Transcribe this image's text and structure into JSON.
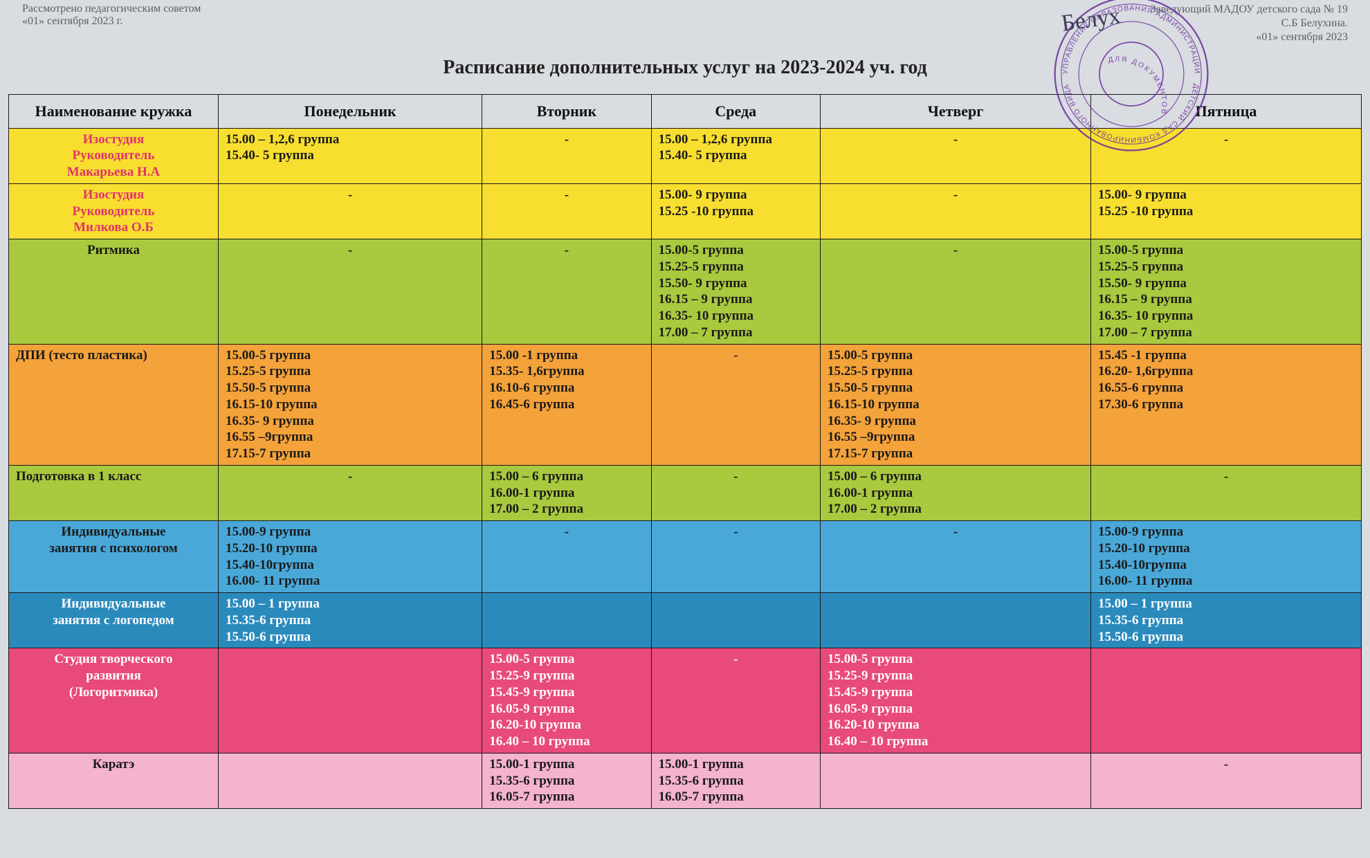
{
  "header": {
    "left_line1": "Рассмотрено педагогическим советом",
    "left_line2": "«01» сентября 2023  г.",
    "right_line1": "Заведующий МАДОУ детского сада № 19",
    "right_line2": "С.Б Белухина.",
    "right_line3": "«01» сентября 2023",
    "title": "Расписание дополнительных услуг на 2023-2024 уч. год",
    "signature_scribble": "Белух"
  },
  "stamp": {
    "color": "#6a2e9e",
    "outer_text_top": "УПРАВЛЕНИЕ ОБРАЗОВАНИЯ АДМИНИСТРАЦИИ",
    "outer_text_bottom": "ДЕТСКИЙ САД КОМБИНИРОВАННОГО ВИДА",
    "inner_text": "ДЛЯ ДОКУМЕНТОВ"
  },
  "columns": [
    "Наименование кружка",
    "Понедельник",
    "Вторник",
    "Среда",
    "Четверг",
    "Пятница"
  ],
  "rows": [
    {
      "bg": "#f8df2f",
      "name_color": "#e0336b",
      "text_color": "#1a1a1a",
      "name_lines": [
        "Изостудия",
        "Руководитель",
        "Макарьева Н.А"
      ],
      "days": [
        [
          "15.00 – 1,2,6 группа",
          "15.40-  5 группа"
        ],
        "-",
        [
          "15.00 – 1,2,6 группа",
          "15.40-  5 группа"
        ],
        "-",
        "-"
      ]
    },
    {
      "bg": "#f8df2f",
      "name_color": "#e0336b",
      "text_color": "#1a1a1a",
      "name_lines": [
        "Изостудия",
        "Руководитель",
        "Милкова О.Б"
      ],
      "days": [
        "-",
        "-",
        [
          "15.00- 9  группа",
          "15.25 -10 группа"
        ],
        "-",
        [
          "15.00- 9  группа",
          "15.25 -10 группа"
        ]
      ]
    },
    {
      "bg": "#a9c93e",
      "name_color": "#1a1a1a",
      "text_color": "#1a1a1a",
      "name_lines": [
        "Ритмика"
      ],
      "days": [
        "-",
        "-",
        [
          "15.00-5 группа",
          "15.25-5 группа",
          "15.50- 9 группа",
          "16.15 – 9 группа",
          "16.35- 10 группа",
          "17.00 – 7 группа"
        ],
        "-",
        [
          "15.00-5 группа",
          "15.25-5 группа",
          "15.50- 9 группа",
          "16.15 – 9 группа",
          "16.35- 10 группа",
          "17.00 – 7 группа"
        ]
      ]
    },
    {
      "bg": "#f4a23a",
      "name_color": "#1a1a1a",
      "text_color": "#1a1a1a",
      "name_lines": [
        "ДПИ (тесто пластика)"
      ],
      "name_align": "left",
      "days": [
        [
          "15.00-5 группа",
          "15.25-5 группа",
          "15.50-5 группа",
          "16.15-10  группа",
          "16.35- 9 группа",
          "16.55 –9группа",
          "17.15-7 группа"
        ],
        [
          "15.00 -1 группа",
          "15.35- 1,6группа",
          "16.10-6 группа",
          "16.45-6 группа"
        ],
        "-",
        [
          "15.00-5 группа",
          "15.25-5 группа",
          "15.50-5 группа",
          "16.15-10  группа",
          "16.35- 9 группа",
          "16.55 –9группа",
          "17.15-7 группа"
        ],
        [
          "15.45 -1 группа",
          "16.20- 1,6группа",
          "16.55-6 группа",
          "17.30-6 группа"
        ]
      ]
    },
    {
      "bg": "#a9c93e",
      "name_color": "#1a1a1a",
      "text_color": "#1a1a1a",
      "name_lines": [
        "Подготовка в 1 класс"
      ],
      "name_align": "left",
      "days": [
        "-",
        [
          "15.00 – 6 группа",
          "16.00-1 группа",
          "17.00 – 2 группа"
        ],
        "-",
        [
          "15.00 – 6 группа",
          "16.00-1 группа",
          "17.00 – 2 группа"
        ],
        "-"
      ]
    },
    {
      "bg": "#4aa8d8",
      "name_color": "#1a1a1a",
      "text_color": "#1a1a1a",
      "name_lines": [
        "Индивидуальные",
        "занятия с психологом"
      ],
      "days": [
        [
          "15.00-9 группа",
          "15.20-10 группа",
          "15.40-10группа",
          "16.00- 11 группа"
        ],
        "-",
        "-",
        "-",
        [
          "15.00-9 группа",
          "15.20-10 группа",
          "15.40-10группа",
          "16.00- 11 группа"
        ]
      ]
    },
    {
      "bg": "#2a8abc",
      "name_color": "#ffffff",
      "text_color": "#ffffff",
      "name_lines": [
        "Индивидуальные",
        "занятия с логопедом"
      ],
      "days": [
        [
          "15.00 – 1 группа",
          "15.35-6 группа",
          "15.50-6 группа"
        ],
        "",
        "",
        "",
        [
          "15.00 – 1 группа",
          "15.35-6 группа",
          "15.50-6 группа"
        ]
      ]
    },
    {
      "bg": "#e84a7a",
      "name_color": "#ffffff",
      "text_color": "#ffffff",
      "name_lines": [
        "Студия творческого",
        "развития",
        "(Логоритмика)"
      ],
      "days": [
        "",
        [
          "15.00-5 группа",
          "15.25-9 группа",
          "15.45-9 группа",
          "16.05-9 группа",
          "16.20-10 группа",
          "16.40 – 10 группа"
        ],
        "-",
        [
          "15.00-5 группа",
          "15.25-9 группа",
          "15.45-9 группа",
          "16.05-9 группа",
          "16.20-10 группа",
          "16.40 – 10 группа"
        ],
        ""
      ]
    },
    {
      "bg": "#f4b3cf",
      "name_color": "#1a1a1a",
      "text_color": "#1a1a1a",
      "name_lines": [
        "Каратэ"
      ],
      "days": [
        "",
        [
          "15.00-1  группа",
          "15.35-6  группа",
          "16.05-7 группа"
        ],
        [
          "15.00-1  группа",
          "15.35-6  группа",
          "16.05-7 группа"
        ],
        "",
        "-"
      ]
    }
  ]
}
